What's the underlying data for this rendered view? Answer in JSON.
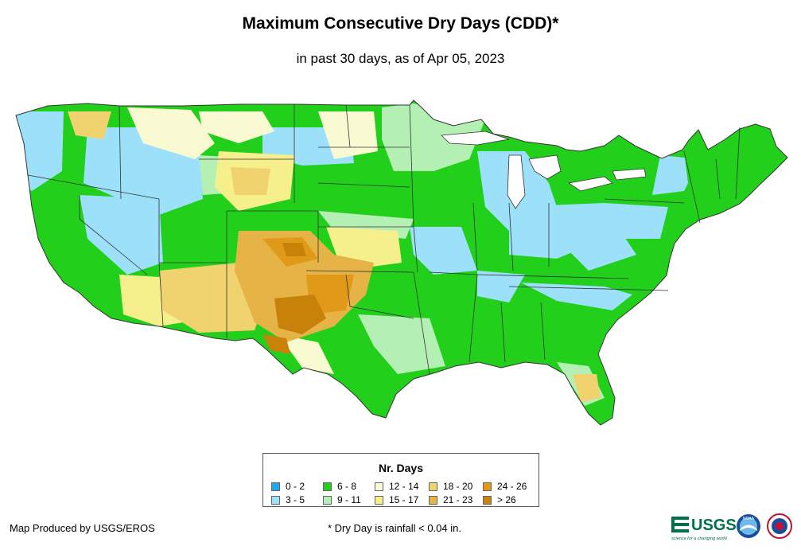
{
  "title": "Maximum Consecutive Dry Days (CDD)*",
  "subtitle": "in past 30 days, as of Apr 05, 2023",
  "legend": {
    "title": "Nr. Days",
    "items": [
      {
        "label": "0 - 2",
        "color": "#1ea8f0"
      },
      {
        "label": "3 - 5",
        "color": "#9ce0fa"
      },
      {
        "label": "6 - 8",
        "color": "#22d01c"
      },
      {
        "label": "9 - 11",
        "color": "#b4f0b4"
      },
      {
        "label": "12 - 14",
        "color": "#fafad2"
      },
      {
        "label": "15 - 17",
        "color": "#f6f08c"
      },
      {
        "label": "18 - 20",
        "color": "#f0d26e"
      },
      {
        "label": "21 - 23",
        "color": "#e6b446"
      },
      {
        "label": "24 - 26",
        "color": "#e09a18"
      },
      {
        "label": "> 26",
        "color": "#c8820a"
      }
    ]
  },
  "footer": {
    "credit": "Map Produced by USGS/EROS",
    "note": "* Dry Day is rainfall < 0.04 in."
  },
  "logos": {
    "usgs_text": "USGS",
    "usgs_tagline": "science for a changing world",
    "noaa_text": "NOAA"
  }
}
